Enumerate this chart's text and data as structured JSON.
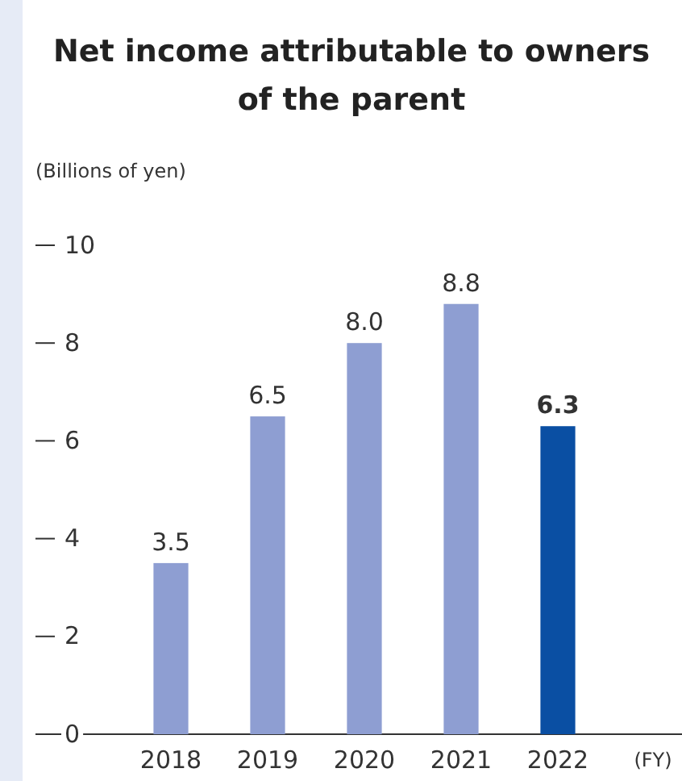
{
  "chart_data": {
    "type": "bar",
    "title": "Net income attributable to owners of the parent",
    "ylabel": "(Billions of yen)",
    "categories": [
      "2018",
      "2019",
      "2020",
      "2021",
      "2022"
    ],
    "values": [
      3.5,
      6.5,
      8.0,
      8.8,
      6.3
    ],
    "value_labels": [
      "3.5",
      "6.5",
      "8.0",
      "8.8",
      "6.3"
    ],
    "colors": [
      "#8e9ed2",
      "#8e9ed2",
      "#8e9ed2",
      "#8e9ed2",
      "#0a4fa3"
    ],
    "ylim": [
      0,
      10
    ],
    "yticks": [
      0,
      2,
      4,
      6,
      8,
      10
    ],
    "annotations": [
      "(FY)"
    ]
  }
}
